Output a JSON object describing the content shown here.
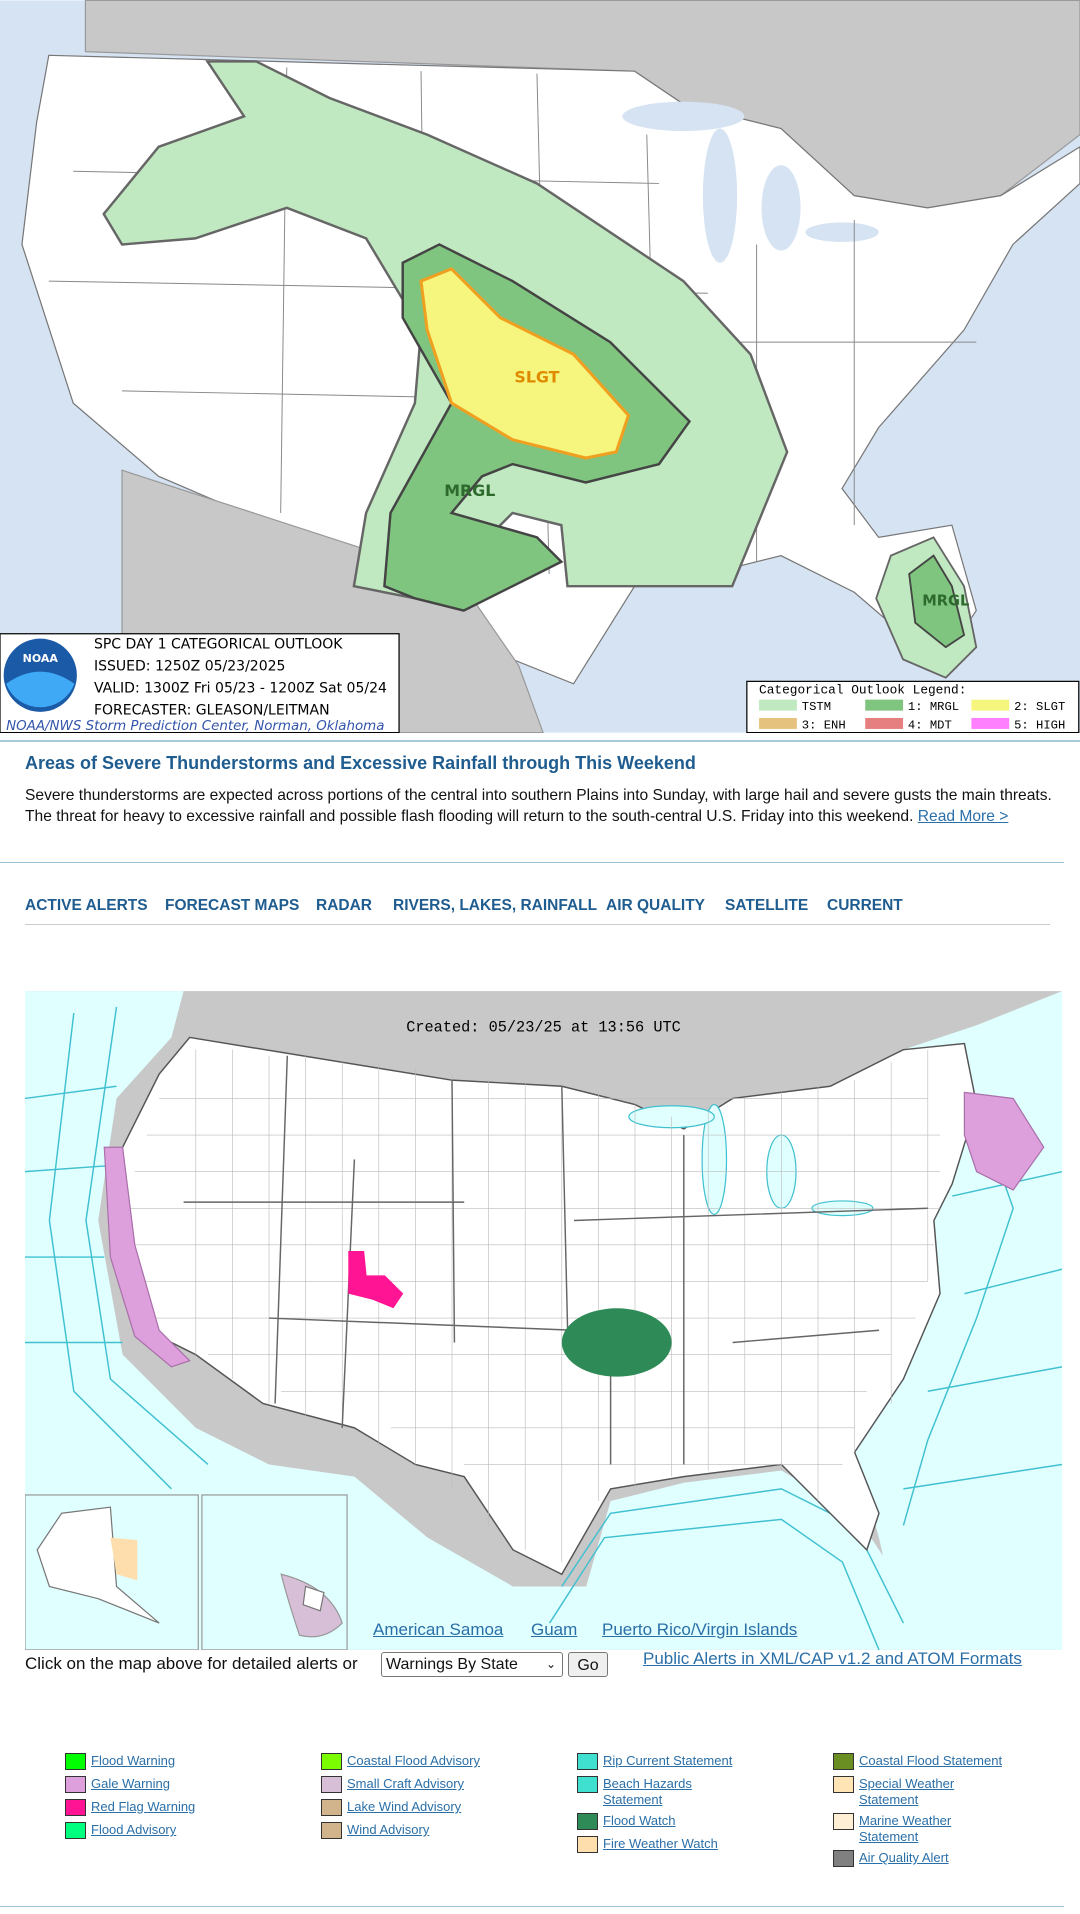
{
  "outlook_map": {
    "logo": "NOAA",
    "title": "SPC DAY 1 CATEGORICAL OUTLOOK",
    "issued": "ISSUED: 1250Z 05/23/2025",
    "valid": "VALID: 1300Z Fri 05/23 - 1200Z Sat 05/24",
    "forecaster": "FORECASTER: GLEASON/LEITMAN",
    "credit": "NOAA/NWS Storm Prediction Center, Norman, Oklahoma",
    "area_labels": [
      "SLGT",
      "MRGL",
      "MRGL"
    ],
    "legend_title": "Categorical Outlook Legend:",
    "legend": [
      {
        "label": "TSTM",
        "color": "#c1e9c1"
      },
      {
        "label": "1: MRGL",
        "color": "#7fc57f"
      },
      {
        "label": "2: SLGT",
        "color": "#f6f67f"
      },
      {
        "label": "3: ENH",
        "color": "#e6c27f"
      },
      {
        "label": "4: MDT",
        "color": "#e67f7f"
      },
      {
        "label": "5: HIGH",
        "color": "#ff80ff"
      }
    ]
  },
  "headline": {
    "title": "Areas of Severe Thunderstorms and Excessive Rainfall through This Weekend",
    "text": "Severe thunderstorms are expected across portions of the central into southern Plains into Sunday, with large hail and severe gusts the main threats. The threat for heavy to excessive rainfall and possible flash flooding will return to the south-central U.S. Friday into this weekend.",
    "link": "Read More >"
  },
  "nav": [
    "ACTIVE ALERTS",
    "FORECAST MAPS",
    "RADAR",
    "RIVERS, LAKES, RAINFALL",
    "AIR QUALITY",
    "SATELLITE",
    "CURRENT"
  ],
  "alerts_map": {
    "created": "Created: 05/23/25 at 13:56 UTC",
    "territories": [
      "American Samoa",
      "Guam",
      "Puerto Rico/Virgin Islands"
    ]
  },
  "form": {
    "prompt": "Click on the map above for detailed alerts or",
    "select": "Warnings By State",
    "button": "Go",
    "feeds": "Public Alerts in XML/CAP v1.2 and ATOM Formats"
  },
  "alert_legend": [
    [
      {
        "label": "Flood Warning",
        "color": "#00ff00"
      },
      {
        "label": "Gale Warning",
        "color": "#dda0dd"
      },
      {
        "label": "Red Flag Warning",
        "color": "#ff1493"
      },
      {
        "label": "Flood Advisory",
        "color": "#00ff7f"
      }
    ],
    [
      {
        "label": "Coastal Flood Advisory",
        "color": "#7cfc00"
      },
      {
        "label": "Small Craft Advisory",
        "color": "#d8bfd8"
      },
      {
        "label": "Lake Wind Advisory",
        "color": "#d2b48c"
      },
      {
        "label": "Wind Advisory",
        "color": "#d2b48c"
      }
    ],
    [
      {
        "label": "Rip Current Statement",
        "color": "#40e0d0"
      },
      {
        "label": "Beach Hazards Statement",
        "color": "#40e0d0"
      },
      {
        "label": "Flood Watch",
        "color": "#2e8b57"
      },
      {
        "label": "Fire Weather Watch",
        "color": "#ffdead"
      }
    ],
    [
      {
        "label": "Coastal Flood Statement",
        "color": "#6b8e23"
      },
      {
        "label": "Special Weather Statement",
        "color": "#ffe4b5"
      },
      {
        "label": "Marine Weather Statement",
        "color": "#ffefd5"
      },
      {
        "label": "Air Quality Alert",
        "color": "#808080"
      }
    ]
  ]
}
